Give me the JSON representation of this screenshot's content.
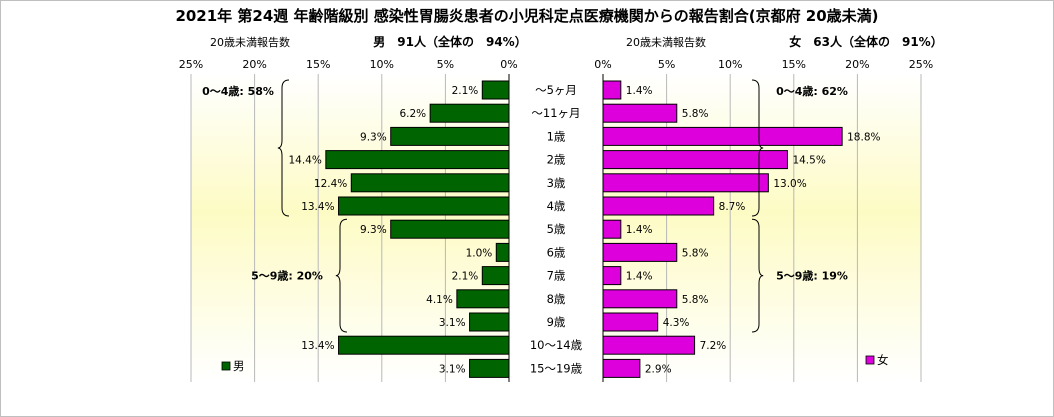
{
  "chart_data": {
    "type": "bar",
    "title": "2021年 第24週 年齢階級別 感染性胃腸炎患者の小児科定点医療機関からの報告割合(京都府 20歳未満)",
    "categories": [
      "～5ヶ月",
      "～11ヶ月",
      "1歳",
      "2歳",
      "3歳",
      "4歳",
      "5歳",
      "6歳",
      "7歳",
      "8歳",
      "9歳",
      "10～14歳",
      "15～19歳"
    ],
    "series": [
      {
        "name": "男",
        "color": "#006400",
        "header_label": "20歳未満報告数",
        "header_detail": "男　91人（全体の　94%）",
        "values": [
          2.1,
          6.2,
          9.3,
          14.4,
          12.4,
          13.4,
          9.3,
          1.0,
          2.1,
          4.1,
          3.1,
          13.4,
          3.1
        ],
        "value_labels": [
          "2.1%",
          "6.2%",
          "9.3%",
          "14.4%",
          "12.4%",
          "13.4%",
          "9.3%",
          "1.0%",
          "2.1%",
          "4.1%",
          "3.1%",
          "13.4%",
          "3.1%"
        ],
        "ticks": [
          "25%",
          "20%",
          "15%",
          "10%",
          "5%",
          "0%"
        ],
        "groups": [
          {
            "label": "0～4歳: 58%",
            "from": 0,
            "to": 5
          },
          {
            "label": "5～9歳: 20%",
            "from": 6,
            "to": 10
          }
        ]
      },
      {
        "name": "女",
        "color": "#dd00dd",
        "header_label": "20歳未満報告数",
        "header_detail": "女　63人（全体の　91%）",
        "values": [
          1.4,
          5.8,
          18.8,
          14.5,
          13.0,
          8.7,
          1.4,
          5.8,
          1.4,
          5.8,
          4.3,
          7.2,
          2.9
        ],
        "value_labels": [
          "1.4%",
          "5.8%",
          "18.8%",
          "14.5%",
          "13.0%",
          "8.7%",
          "1.4%",
          "5.8%",
          "1.4%",
          "5.8%",
          "4.3%",
          "7.2%",
          "2.9%"
        ],
        "ticks": [
          "0%",
          "5%",
          "10%",
          "15%",
          "20%",
          "25%"
        ],
        "groups": [
          {
            "label": "0～4歳: 62%",
            "from": 0,
            "to": 5
          },
          {
            "label": "5～9歳: 19%",
            "from": 6,
            "to": 10
          }
        ]
      }
    ],
    "xlim": [
      0,
      25
    ],
    "legend": [
      "男",
      "女"
    ],
    "legend_position": "bottom-left (男), bottom-right (女)",
    "grid": true
  }
}
